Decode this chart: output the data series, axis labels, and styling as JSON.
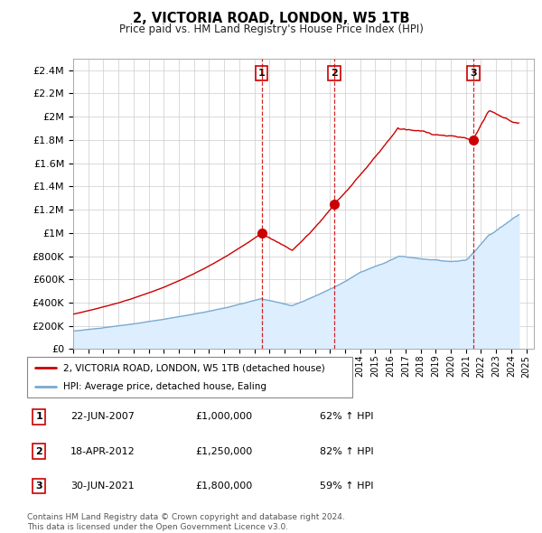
{
  "title": "2, VICTORIA ROAD, LONDON, W5 1TB",
  "subtitle": "Price paid vs. HM Land Registry's House Price Index (HPI)",
  "ylabel_ticks": [
    "£0",
    "£200K",
    "£400K",
    "£600K",
    "£800K",
    "£1M",
    "£1.2M",
    "£1.4M",
    "£1.6M",
    "£1.8M",
    "£2M",
    "£2.2M",
    "£2.4M"
  ],
  "ytick_values": [
    0,
    200000,
    400000,
    600000,
    800000,
    1000000,
    1200000,
    1400000,
    1600000,
    1800000,
    2000000,
    2200000,
    2400000
  ],
  "ylim": [
    0,
    2500000
  ],
  "xlim_start": 1995.0,
  "xlim_end": 2025.5,
  "sale_dates": [
    "22-JUN-2007",
    "18-APR-2012",
    "30-JUN-2021"
  ],
  "sale_prices": [
    1000000,
    1250000,
    1800000
  ],
  "sale_xvals": [
    2007.47,
    2012.29,
    2021.49
  ],
  "sale_pct": [
    "62% ↑ HPI",
    "82% ↑ HPI",
    "59% ↑ HPI"
  ],
  "vline_color": "#cc0000",
  "property_line_color": "#cc0000",
  "hpi_line_color": "#7aaad0",
  "hpi_fill_color": "#ddeeff",
  "legend_label_property": "2, VICTORIA ROAD, LONDON, W5 1TB (detached house)",
  "legend_label_hpi": "HPI: Average price, detached house, Ealing",
  "footer_text": "Contains HM Land Registry data © Crown copyright and database right 2024.\nThis data is licensed under the Open Government Licence v3.0.",
  "background_color": "#ffffff",
  "grid_color": "#cccccc"
}
